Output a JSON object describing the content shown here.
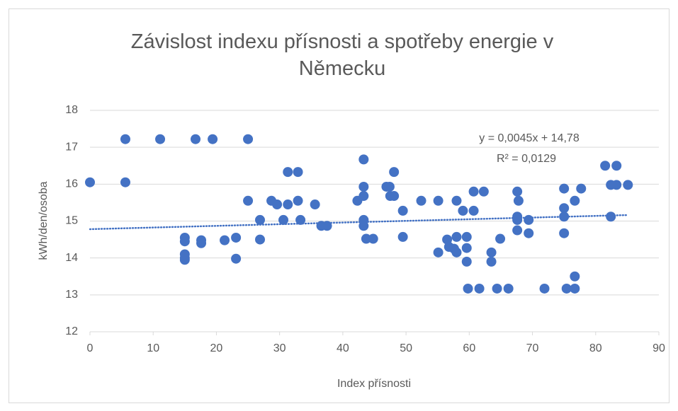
{
  "chart_data": {
    "type": "scatter",
    "title": "Závislost indexu přísnosti a spotřeby energie v Německu",
    "x_label": "Index přísnosti",
    "y_label": "kWh/den/osoba",
    "color": "#4472c4",
    "grid": true,
    "xlim": [
      0,
      90
    ],
    "xticks": [
      0,
      10,
      20,
      30,
      40,
      50,
      60,
      70,
      80,
      90
    ],
    "ylim": [
      12,
      18
    ],
    "yticks": [
      12,
      13,
      14,
      15,
      16,
      17,
      18
    ],
    "x": [
      0,
      5.6,
      5.6,
      11.1,
      16.7,
      19.4,
      25,
      15,
      15,
      15,
      15,
      15,
      17.6,
      17.6,
      21.3,
      23.1,
      23.1,
      25,
      26.9,
      26.9,
      28.7,
      29.6,
      30.6,
      31.3,
      31.3,
      32.9,
      32.9,
      33.3,
      35.6,
      36.6,
      37.5,
      42.3,
      43.3,
      43.3,
      43.3,
      43.3,
      43.3,
      43.7,
      44.8,
      46.9,
      47.4,
      47.5,
      48.1,
      48.1,
      49.5,
      49.5,
      52.4,
      55.1,
      55.1,
      56.5,
      56.8,
      57.6,
      58,
      58,
      58,
      59,
      59.6,
      59.6,
      59.6,
      59.8,
      60.7,
      60.7,
      61.6,
      62.3,
      63.5,
      63.5,
      64.4,
      64.9,
      66.2,
      67.6,
      67.6,
      67.6,
      67.6,
      67.8,
      69.4,
      69.4,
      71.9,
      75,
      75,
      75,
      75,
      75.4,
      76.7,
      76.7,
      76.7,
      77.7,
      81.5,
      82.4,
      82.4,
      83.3,
      83.3,
      85.1
    ],
    "values": [
      16.05,
      17.22,
      16.05,
      17.22,
      17.22,
      17.22,
      17.22,
      14.55,
      14.45,
      14.1,
      14.0,
      13.95,
      14.48,
      14.4,
      14.48,
      14.55,
      13.98,
      15.55,
      15.03,
      14.5,
      15.55,
      15.45,
      15.03,
      16.33,
      15.45,
      16.33,
      15.55,
      15.03,
      15.45,
      14.87,
      14.87,
      15.55,
      16.67,
      15.93,
      15.68,
      15.03,
      14.87,
      14.52,
      14.52,
      15.93,
      15.93,
      15.68,
      16.33,
      15.68,
      15.28,
      14.57,
      15.55,
      15.55,
      14.15,
      14.5,
      14.3,
      14.25,
      15.55,
      14.57,
      14.15,
      15.28,
      14.57,
      14.27,
      13.9,
      13.17,
      15.8,
      15.28,
      13.17,
      15.8,
      14.15,
      13.9,
      13.17,
      14.52,
      13.17,
      15.8,
      15.12,
      15.03,
      14.75,
      15.55,
      15.03,
      14.67,
      13.17,
      15.88,
      15.35,
      15.12,
      14.67,
      13.17,
      15.55,
      13.5,
      13.17,
      15.88,
      16.5,
      15.98,
      15.12,
      16.5,
      15.98,
      15.98
    ],
    "trendline": {
      "slope": 0.0045,
      "intercept": 14.78,
      "xrange": [
        0,
        85.1
      ],
      "equation": "y = 0,0045x + 14,78",
      "r_squared": "R² = 0,0129"
    }
  }
}
